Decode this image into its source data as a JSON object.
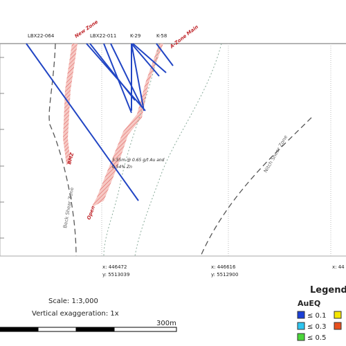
{
  "section": {
    "holes": [
      "LBX22-064",
      "LBX22-011",
      "K-29",
      "K-58"
    ],
    "zones": [
      "New Zone",
      "A-Zone Main",
      "BMZ",
      "Open"
    ],
    "shear_zones": [
      "Beck Shear Zone",
      "Nitch Shear Zone"
    ],
    "annotation": [
      "5.55m @ 0.65 g/t Au and",
      "0.54% Zn"
    ],
    "coordinates": [
      {
        "x": "x: 446472",
        "y": "y: 5513039"
      },
      {
        "x": "x: 446616",
        "y": "y: 5512900"
      },
      {
        "x": "x: 44"
      }
    ]
  },
  "footer": {
    "scale": "Scale: 1:3,000",
    "exaggeration": "Vertical exaggeration: 1x",
    "bar_label": "300m"
  },
  "legend": {
    "title": "Legend",
    "subtitle": "AuEQ",
    "items": [
      {
        "label": "≤ 0.1",
        "color": "#1a3fd6"
      },
      {
        "label": "≤ 0.3",
        "color": "#2ec5f0"
      },
      {
        "label": "≤ 0.5",
        "color": "#4bd63a"
      },
      {
        "color": "#f5e600"
      },
      {
        "color": "#e8501e"
      }
    ]
  }
}
